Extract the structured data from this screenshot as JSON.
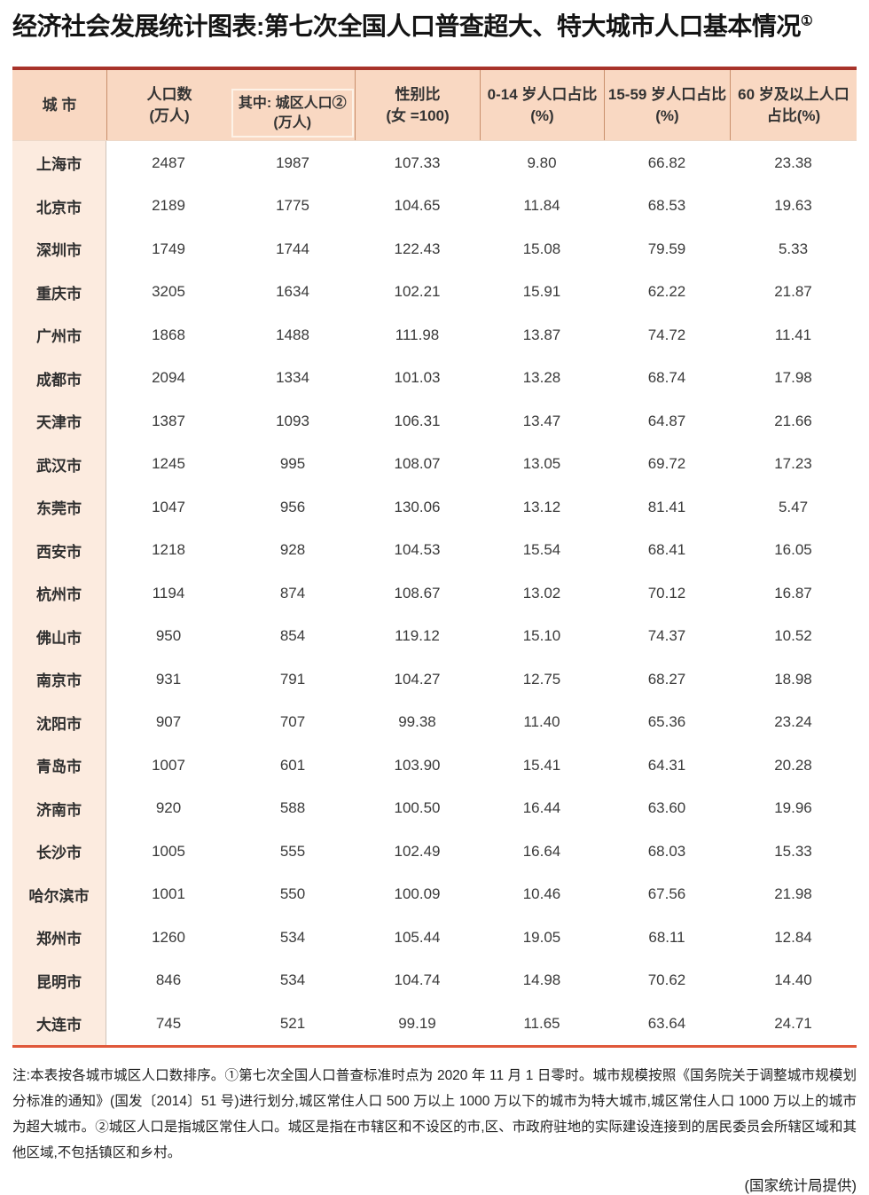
{
  "title": {
    "text": "经济社会发展统计图表:第七次全国人口普查超大、特大城市人口基本情况",
    "footnote_mark": "①"
  },
  "table": {
    "header": {
      "city": "城  市",
      "population_lines": [
        "人口数",
        "(万人)"
      ],
      "urban_lines": [
        "其中: 城区人口②",
        "(万人)"
      ],
      "sex_ratio_lines": [
        "性别比",
        "(女 =100)"
      ],
      "age_0_14_lines": [
        "0-14 岁人口占比",
        "(%)"
      ],
      "age_15_59_lines": [
        "15-59 岁人口占比",
        "(%)"
      ],
      "age_60_lines": [
        "60 岁及以上人口",
        "占比(%)"
      ]
    },
    "columns": [
      "城市",
      "人口数(万人)",
      "其中:城区人口②(万人)",
      "性别比(女=100)",
      "0-14岁人口占比(%)",
      "15-59岁人口占比(%)",
      "60岁及以上人口占比(%)"
    ],
    "rows": [
      [
        "上海市",
        "2487",
        "1987",
        "107.33",
        "9.80",
        "66.82",
        "23.38"
      ],
      [
        "北京市",
        "2189",
        "1775",
        "104.65",
        "11.84",
        "68.53",
        "19.63"
      ],
      [
        "深圳市",
        "1749",
        "1744",
        "122.43",
        "15.08",
        "79.59",
        "5.33"
      ],
      [
        "重庆市",
        "3205",
        "1634",
        "102.21",
        "15.91",
        "62.22",
        "21.87"
      ],
      [
        "广州市",
        "1868",
        "1488",
        "111.98",
        "13.87",
        "74.72",
        "11.41"
      ],
      [
        "成都市",
        "2094",
        "1334",
        "101.03",
        "13.28",
        "68.74",
        "17.98"
      ],
      [
        "天津市",
        "1387",
        "1093",
        "106.31",
        "13.47",
        "64.87",
        "21.66"
      ],
      [
        "武汉市",
        "1245",
        "995",
        "108.07",
        "13.05",
        "69.72",
        "17.23"
      ],
      [
        "东莞市",
        "1047",
        "956",
        "130.06",
        "13.12",
        "81.41",
        "5.47"
      ],
      [
        "西安市",
        "1218",
        "928",
        "104.53",
        "15.54",
        "68.41",
        "16.05"
      ],
      [
        "杭州市",
        "1194",
        "874",
        "108.67",
        "13.02",
        "70.12",
        "16.87"
      ],
      [
        "佛山市",
        "950",
        "854",
        "119.12",
        "15.10",
        "74.37",
        "10.52"
      ],
      [
        "南京市",
        "931",
        "791",
        "104.27",
        "12.75",
        "68.27",
        "18.98"
      ],
      [
        "沈阳市",
        "907",
        "707",
        "99.38",
        "11.40",
        "65.36",
        "23.24"
      ],
      [
        "青岛市",
        "1007",
        "601",
        "103.90",
        "15.41",
        "64.31",
        "20.28"
      ],
      [
        "济南市",
        "920",
        "588",
        "100.50",
        "16.44",
        "63.60",
        "19.96"
      ],
      [
        "长沙市",
        "1005",
        "555",
        "102.49",
        "16.64",
        "68.03",
        "15.33"
      ],
      [
        "哈尔滨市",
        "1001",
        "550",
        "100.09",
        "10.46",
        "67.56",
        "21.98"
      ],
      [
        "郑州市",
        "1260",
        "534",
        "105.44",
        "19.05",
        "68.11",
        "12.84"
      ],
      [
        "昆明市",
        "846",
        "534",
        "104.74",
        "14.98",
        "70.62",
        "14.40"
      ],
      [
        "大连市",
        "745",
        "521",
        "99.19",
        "11.65",
        "63.64",
        "24.71"
      ]
    ]
  },
  "note": {
    "text": "注:本表按各城市城区人口数排序。①第七次全国人口普查标准时点为 2020 年 11 月 1 日零时。城市规模按照《国务院关于调整城市规模划分标准的通知》(国发〔2014〕51 号)进行划分,城区常住人口 500 万以上 1000 万以下的城市为特大城市,城区常住人口 1000 万以上的城市为超大城市。②城区人口是指城区常住人口。城区是指在市辖区和不设区的市,区、市政府驻地的实际建设连接到的居民委员会所辖区域和其他区域,不包括镇区和乡村。",
    "provider": "(国家统计局提供)"
  },
  "colors": {
    "table_top_border": "#a8332a",
    "table_bottom_border": "#e0583a",
    "header_bg": "#f9d8c2",
    "city_col_bg": "#fcebdf",
    "nested_box_border": "#fdf2e7"
  }
}
